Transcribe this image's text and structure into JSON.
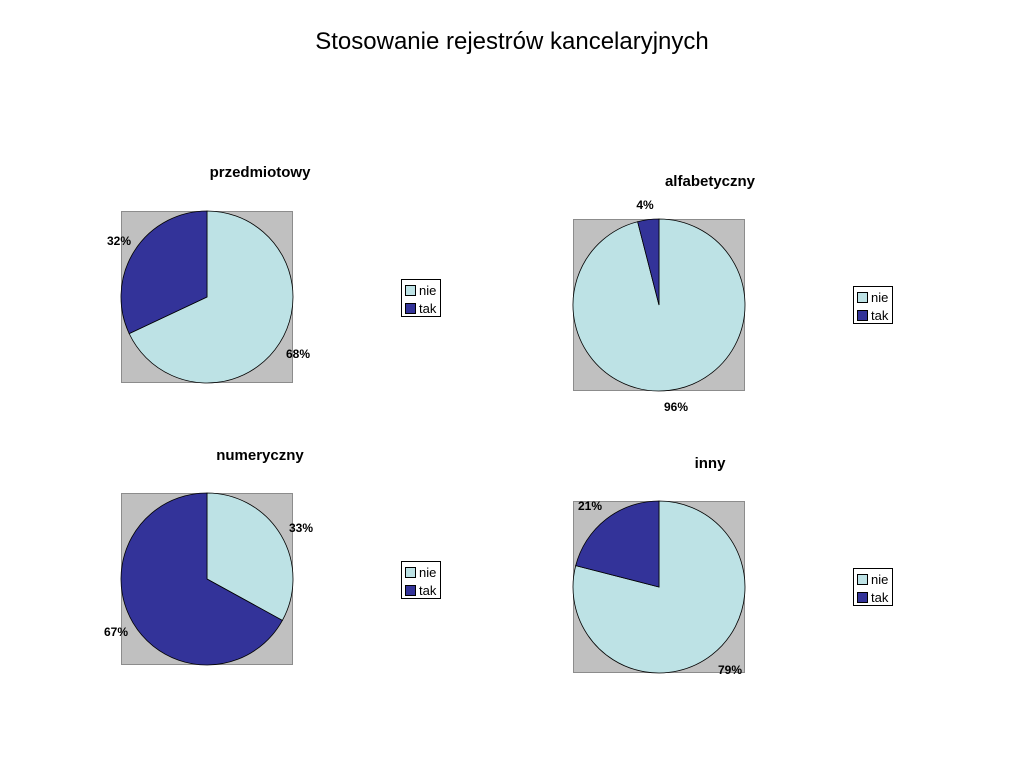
{
  "page": {
    "title": "Stosowanie rejestrów kancelaryjnych"
  },
  "colors": {
    "nie": "#bde2e5",
    "tak": "#333399",
    "plot_bg": "#c0c0c0"
  },
  "chart_data": [
    {
      "type": "pie",
      "title": "przedmiotowy",
      "categories": [
        "nie",
        "tak"
      ],
      "values": [
        68,
        32
      ],
      "labels": [
        "68%",
        "32%"
      ],
      "legend": "right"
    },
    {
      "type": "pie",
      "title": "alfabetyczny",
      "categories": [
        "nie",
        "tak"
      ],
      "values": [
        96,
        4
      ],
      "labels": [
        "96%",
        "4%"
      ],
      "legend": "right"
    },
    {
      "type": "pie",
      "title": "numeryczny",
      "categories": [
        "nie",
        "tak"
      ],
      "values": [
        33,
        67
      ],
      "labels": [
        "33%",
        "67%"
      ],
      "legend": "right"
    },
    {
      "type": "pie",
      "title": "inny",
      "categories": [
        "nie",
        "tak"
      ],
      "values": [
        79,
        21
      ],
      "labels": [
        "79%",
        "21%"
      ],
      "legend": "right"
    }
  ]
}
